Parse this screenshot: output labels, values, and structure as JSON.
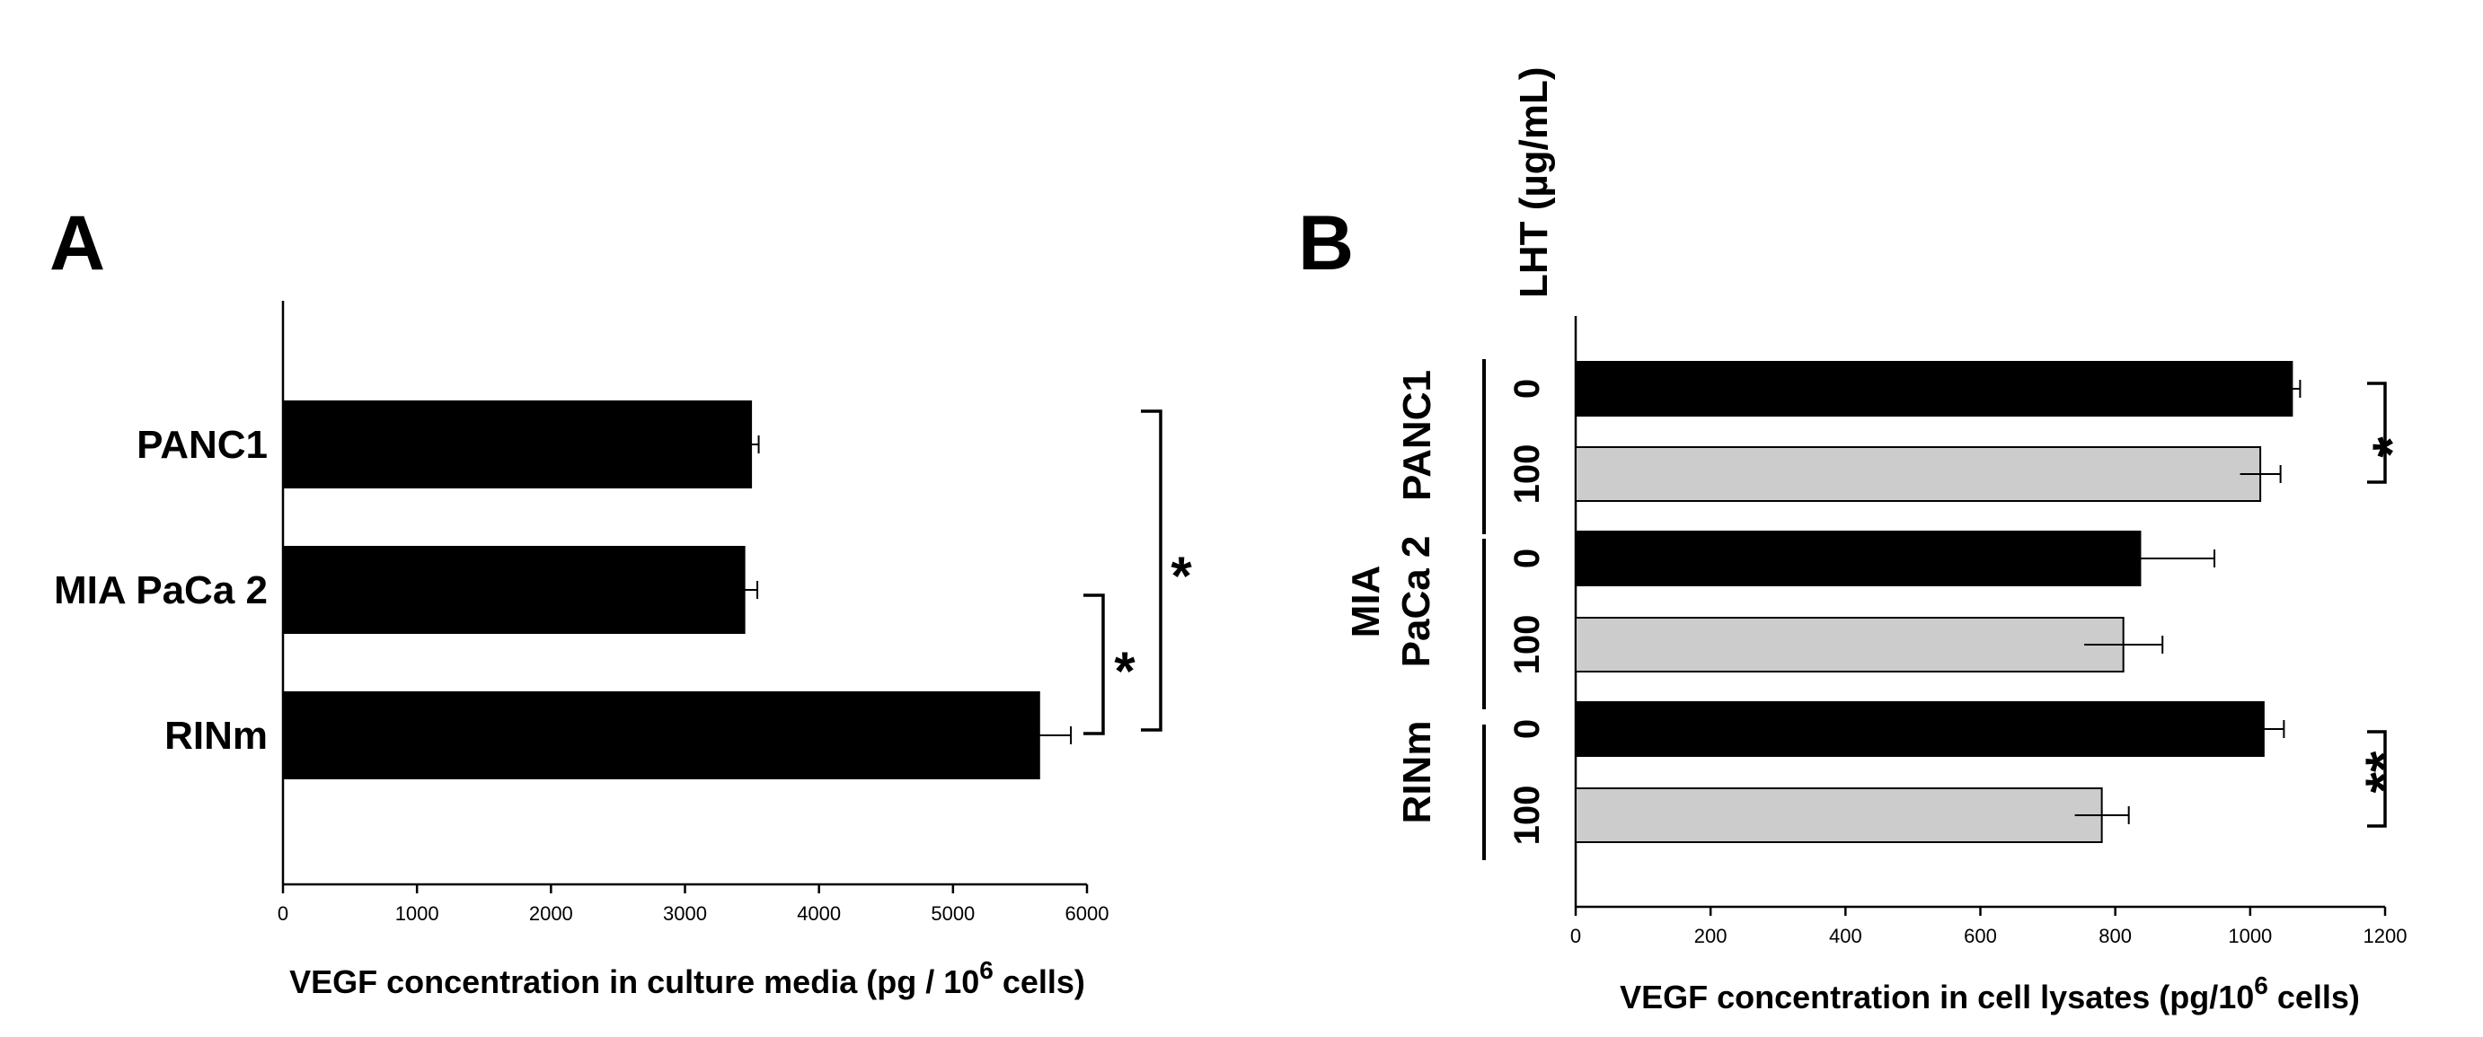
{
  "chart_data": [
    {
      "panel": "A",
      "type": "bar",
      "orientation": "horizontal",
      "categories": [
        "PANC1",
        "MIA PaCa 2",
        "RINm"
      ],
      "values": [
        3500,
        3450,
        5650
      ],
      "errors": [
        50,
        90,
        230
      ],
      "xlabel_main": "VEGF concentration in culture media (pg / 10",
      "xlabel_sup": "6",
      "xlabel_tail": " cells)",
      "xlim": [
        0,
        6000
      ],
      "xticks": [
        "0",
        "1000",
        "2000",
        "3000",
        "4000",
        "5000",
        "6000"
      ],
      "bar_color": "#000000",
      "significance": [
        {
          "between": [
            "MIA PaCa 2",
            "RINm"
          ],
          "label": "*"
        },
        {
          "between": [
            "PANC1",
            "RINm"
          ],
          "label": "*"
        }
      ]
    },
    {
      "panel": "B",
      "type": "bar",
      "orientation": "horizontal",
      "legend_title": "LHT (µg/mL)",
      "groups": [
        {
          "name": "PANC1",
          "name_lines": [
            "PANC1"
          ]
        },
        {
          "name": "MIA PaCa 2",
          "name_lines": [
            "MIA",
            "PaCa 2"
          ]
        },
        {
          "name": "RINm",
          "name_lines": [
            "RINm"
          ]
        }
      ],
      "bars": [
        {
          "group": "PANC1",
          "level": "0",
          "value": 1062,
          "error": 12,
          "color": "#000000"
        },
        {
          "group": "PANC1",
          "level": "100",
          "value": 1015,
          "error": 30,
          "color": "#cccccc"
        },
        {
          "group": "MIA PaCa 2",
          "level": "0",
          "value": 837,
          "error": 110,
          "color": "#000000"
        },
        {
          "group": "MIA PaCa 2",
          "level": "100",
          "value": 812,
          "error": 58,
          "color": "#cccccc"
        },
        {
          "group": "RINm",
          "level": "0",
          "value": 1020,
          "error": 30,
          "color": "#000000"
        },
        {
          "group": "RINm",
          "level": "100",
          "value": 780,
          "error": 40,
          "color": "#cccccc"
        }
      ],
      "xlabel_main": "VEGF concentration in cell lysates (pg/10",
      "xlabel_sup": "6",
      "xlabel_tail": " cells)",
      "xlim": [
        0,
        1200
      ],
      "xticks": [
        "0",
        "200",
        "400",
        "600",
        "800",
        "1000",
        "1200"
      ],
      "significance": [
        {
          "group": "PANC1",
          "label": "*"
        },
        {
          "group": "RINm",
          "label": "**"
        }
      ]
    }
  ]
}
